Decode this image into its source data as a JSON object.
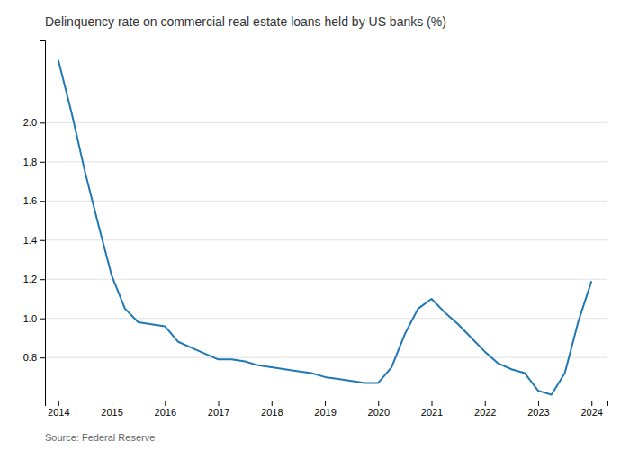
{
  "chart_data": {
    "type": "line",
    "title": "Delinquency rate on commercial real estate loans held by US banks (%)",
    "annotations": [
      "Source: Federal Reserve"
    ],
    "x": [
      2014.0,
      2014.25,
      2014.5,
      2014.75,
      2015.0,
      2015.25,
      2015.5,
      2015.75,
      2016.0,
      2016.25,
      2016.5,
      2016.75,
      2017.0,
      2017.25,
      2017.5,
      2017.75,
      2018.0,
      2018.25,
      2018.5,
      2018.75,
      2019.0,
      2019.25,
      2019.5,
      2019.75,
      2020.0,
      2020.25,
      2020.5,
      2020.75,
      2021.0,
      2021.25,
      2021.5,
      2021.75,
      2022.0,
      2022.25,
      2022.5,
      2022.75,
      2023.0,
      2023.25,
      2023.5,
      2023.75,
      2024.0
    ],
    "values": [
      2.32,
      2.05,
      1.75,
      1.48,
      1.22,
      1.05,
      0.98,
      0.97,
      0.96,
      0.88,
      0.85,
      0.82,
      0.79,
      0.79,
      0.78,
      0.76,
      0.75,
      0.74,
      0.73,
      0.72,
      0.7,
      0.69,
      0.68,
      0.67,
      0.67,
      0.75,
      0.92,
      1.05,
      1.1,
      1.03,
      0.97,
      0.9,
      0.83,
      0.77,
      0.74,
      0.72,
      0.63,
      0.61,
      0.72,
      0.98,
      1.19
    ],
    "xlim": [
      2013.75,
      2024.3
    ],
    "xticks": [
      2014,
      2015,
      2016,
      2017,
      2018,
      2019,
      2020,
      2021,
      2022,
      2023,
      2024
    ],
    "ylim": [
      0.58,
      2.42
    ],
    "yticks": [
      0.8,
      {
        "value": 1.0,
        "label": "1.0"
      },
      1.2,
      1.4,
      1.6,
      1.8,
      {
        "value": 2.0,
        "label": "2.0"
      }
    ],
    "grid": true
  }
}
